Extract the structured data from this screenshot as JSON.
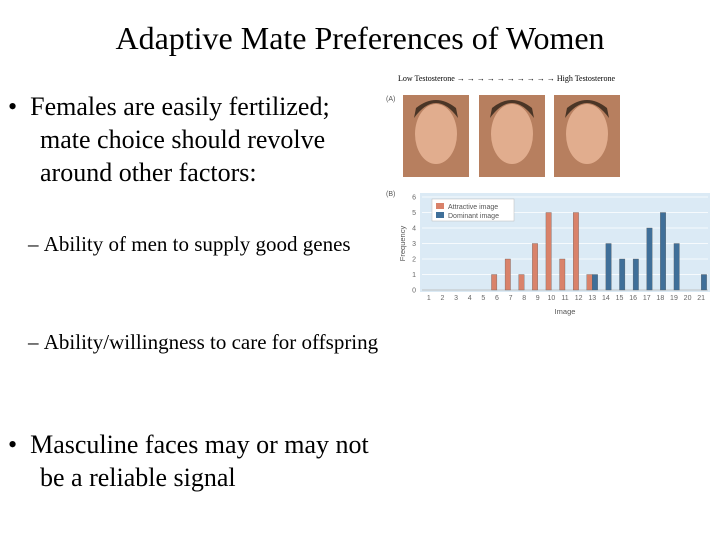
{
  "slide": {
    "title": "Adaptive Mate Preferences of Women",
    "bullets": [
      {
        "text": "Females are easily fertilized; mate choice should revolve around other factors:",
        "subbullets": [
          "Ability of men to supply good genes",
          "Ability/willingness to care for offspring"
        ]
      },
      {
        "text": "Masculine faces may or may not be a reliable signal",
        "subbullets": []
      }
    ],
    "figure": {
      "caption": "Low Testosterone → → → → → → → → → → High Testosterone",
      "panel_a": "(A)",
      "panel_b": "(B)"
    }
  },
  "chart_data": {
    "type": "bar",
    "xlabel": "Image",
    "ylabel": "Frequency",
    "categories": [
      "1",
      "2",
      "3",
      "4",
      "5",
      "6",
      "7",
      "8",
      "9",
      "10",
      "11",
      "12",
      "13",
      "14",
      "15",
      "16",
      "17",
      "18",
      "19",
      "20",
      "21"
    ],
    "series": [
      {
        "name": "Attractive image",
        "color": "#d9826a",
        "values": [
          0,
          0,
          0,
          0,
          0,
          1,
          2,
          1,
          3,
          5,
          2,
          5,
          1,
          0,
          0,
          0,
          0,
          0,
          0,
          0,
          0
        ]
      },
      {
        "name": "Dominant image",
        "color": "#3f6f99",
        "values": [
          0,
          0,
          0,
          0,
          0,
          0,
          0,
          0,
          0,
          0,
          0,
          0,
          1,
          3,
          2,
          2,
          4,
          5,
          3,
          0,
          1
        ]
      }
    ],
    "ylim": [
      0,
      6
    ],
    "yticks": [
      0,
      1,
      2,
      3,
      4,
      5,
      6
    ],
    "grid": true,
    "legend": "upper-left"
  }
}
